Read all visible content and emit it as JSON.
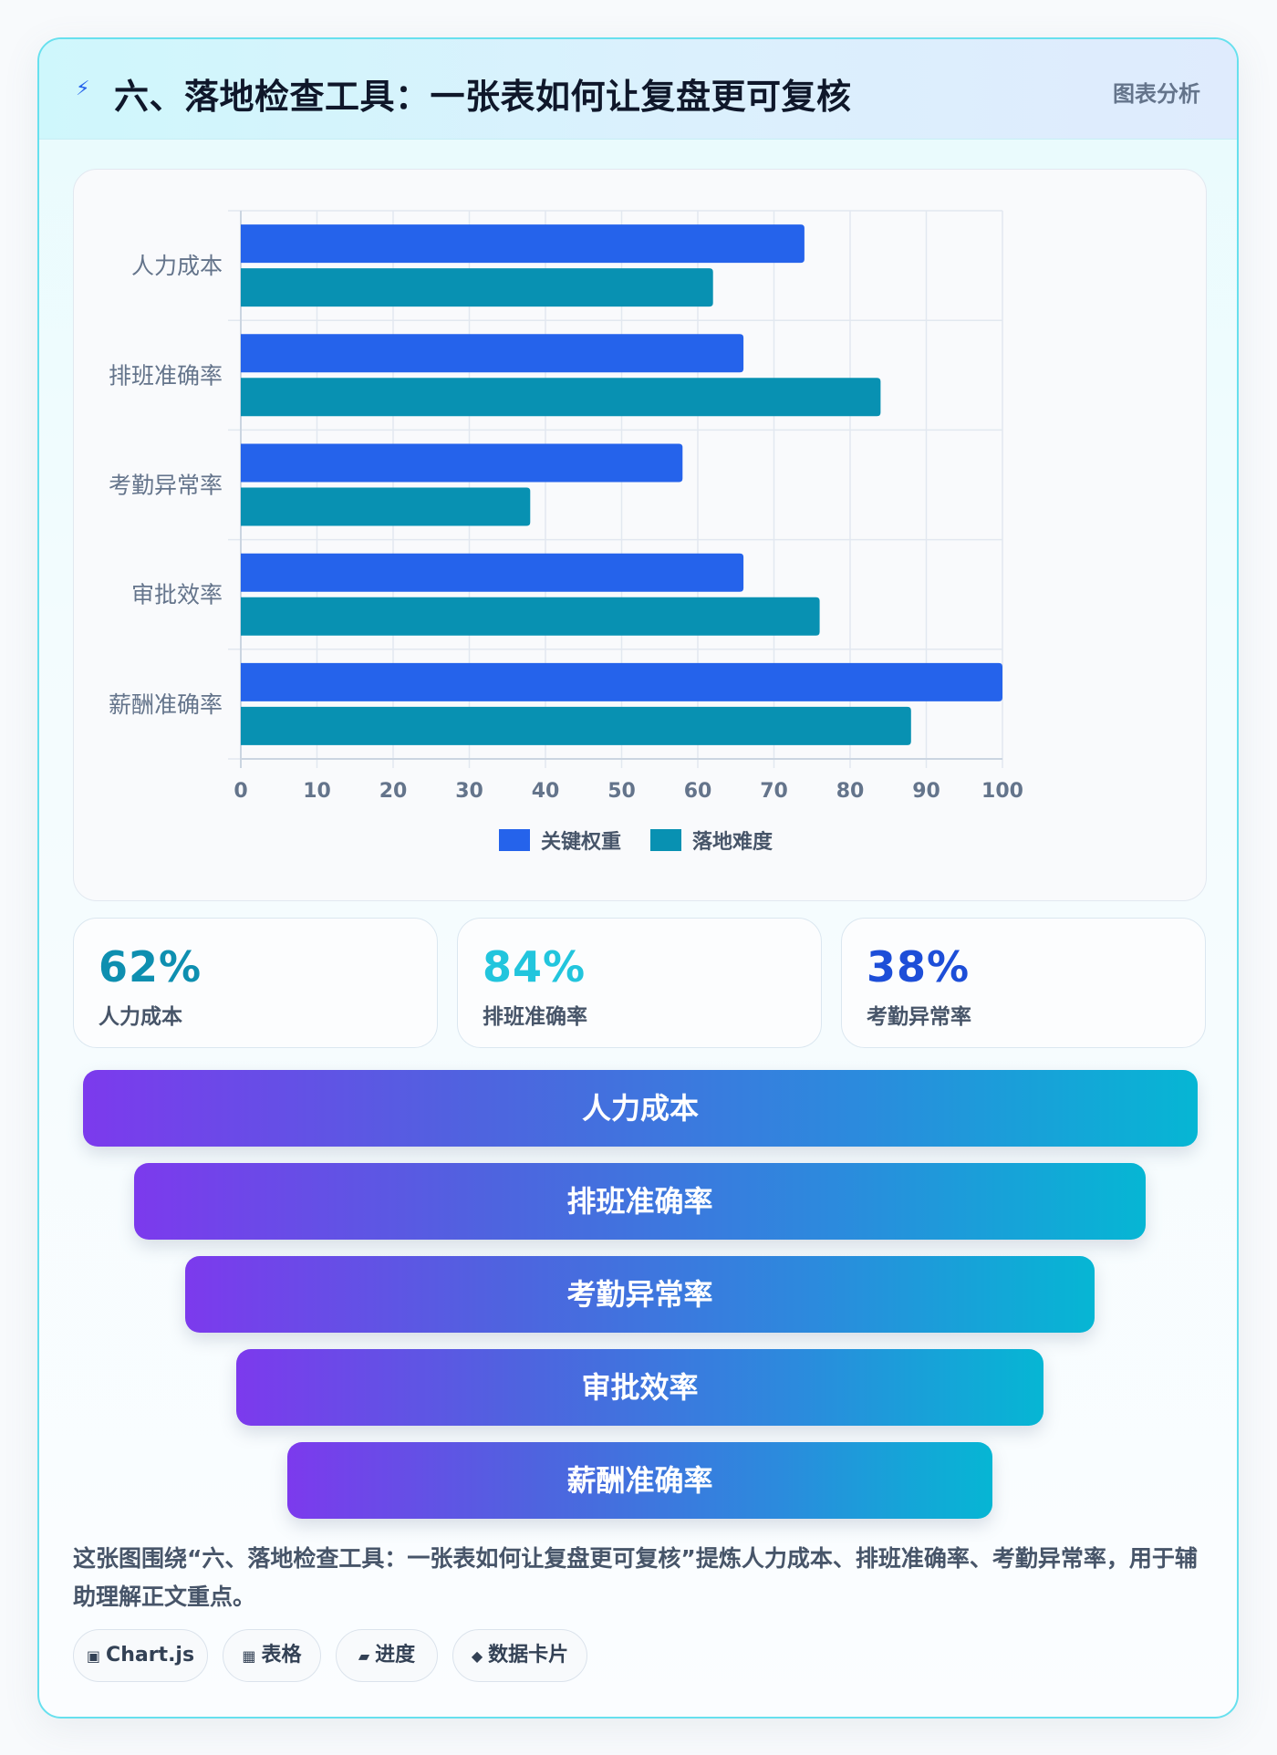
{
  "header": {
    "icon": "lightning-icon",
    "title": "六、落地检查工具：一张表如何让复盘更可复核",
    "tag": "图表分析"
  },
  "chart_data": {
    "type": "bar",
    "orientation": "horizontal",
    "categories": [
      "人力成本",
      "排班准确率",
      "考勤异常率",
      "审批效率",
      "薪酬准确率"
    ],
    "series": [
      {
        "name": "关键权重",
        "values": [
          74,
          66,
          58,
          66,
          100
        ],
        "color": "#2563eb"
      },
      {
        "name": "落地难度",
        "values": [
          62,
          84,
          38,
          76,
          88
        ],
        "color": "#0891b2"
      }
    ],
    "xlim": [
      0,
      100
    ],
    "xticks": [
      "0",
      "10",
      "20",
      "30",
      "40",
      "50",
      "60",
      "70",
      "80",
      "90",
      "100"
    ],
    "grid": true,
    "legend": "bottom"
  },
  "kpis": [
    {
      "value": "62%",
      "label": "人力成本",
      "color": "#0e8fb0"
    },
    {
      "value": "84%",
      "label": "排班准确率",
      "color": "#22c5dd"
    },
    {
      "value": "38%",
      "label": "考勤异常率",
      "color": "#1d4ed8"
    }
  ],
  "funnel": [
    "人力成本",
    "排班准确率",
    "考勤异常率",
    "审批效率",
    "薪酬准确率"
  ],
  "summary": "这张图围绕“六、落地检查工具：一张表如何让复盘更可复核”提炼人力成本、排班准确率、考勤异常率，用于辅助理解正文重点。",
  "chips": [
    {
      "icon": "▣",
      "label": "Chart.js"
    },
    {
      "icon": "▦",
      "label": "表格"
    },
    {
      "icon": "▰",
      "label": "进度"
    },
    {
      "icon": "◆",
      "label": "数据卡片"
    }
  ]
}
